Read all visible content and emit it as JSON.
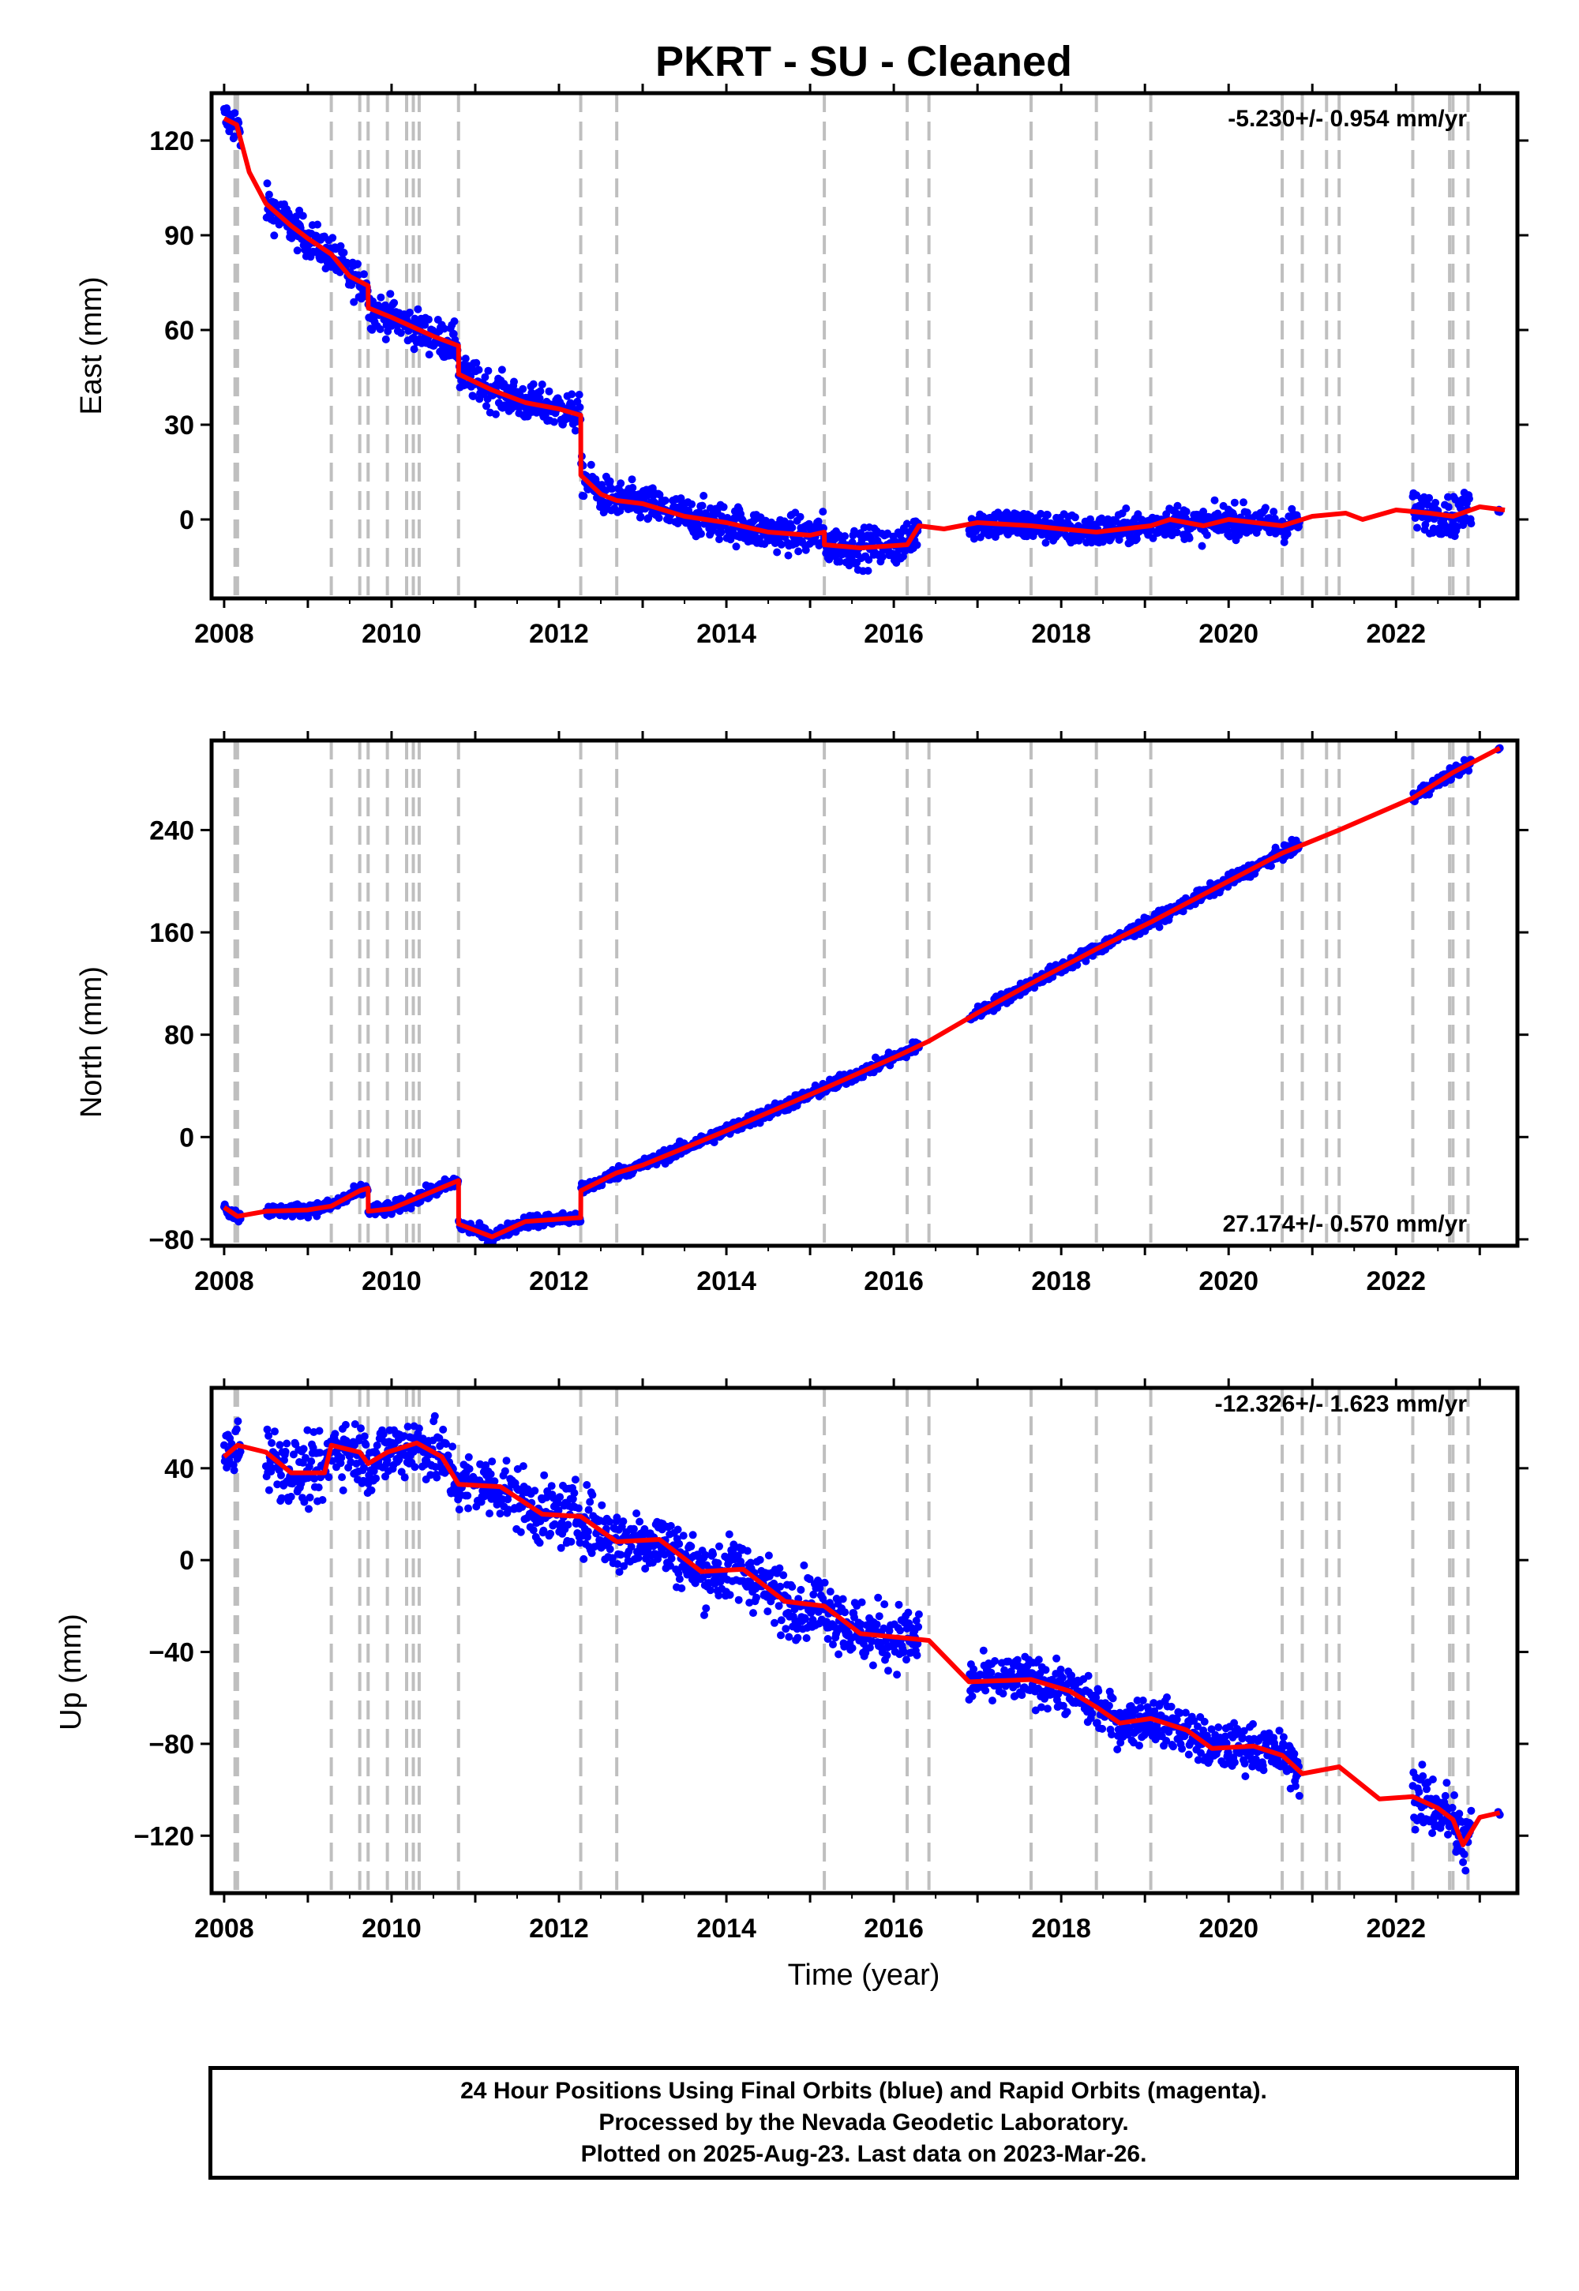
{
  "colors": {
    "final_orbits": "#0000ff",
    "model": "#ff0000",
    "offset_lines": "#bfbfbf",
    "axes": "#000000"
  },
  "footer": {
    "lines": [
      "24 Hour Positions Using Final Orbits (blue) and Rapid Orbits (magenta).",
      "Processed by the Nevada Geodetic Laboratory.",
      "Plotted on 2025-Aug-23. Last data on 2023-Mar-26."
    ]
  },
  "chart_data": {
    "type": "scatter",
    "title": "PKRT  - SU - Cleaned",
    "xlabel": "Time (year)",
    "xlim": [
      2007.85,
      2023.45
    ],
    "xticks": [
      2008,
      2010,
      2012,
      2014,
      2016,
      2018,
      2020,
      2022
    ],
    "offset_lines": [
      2008.13,
      2008.16,
      2009.28,
      2009.62,
      2009.72,
      2009.95,
      2010.18,
      2010.26,
      2010.33,
      2010.8,
      2012.26,
      2012.69,
      2015.17,
      2016.16,
      2016.42,
      2017.64,
      2018.42,
      2019.07,
      2020.64,
      2020.88,
      2021.17,
      2021.32,
      2022.2,
      2022.64,
      2022.68,
      2022.86
    ],
    "panels": [
      {
        "ylabel": "East (mm)",
        "ylim": [
          -25,
          135
        ],
        "yticks": [
          0,
          30,
          60,
          90,
          120
        ],
        "rate": "-5.230+/- 0.954 mm/yr",
        "rate_position": "top-right",
        "model": [
          {
            "x": 2008.0,
            "y": 127
          },
          {
            "x": 2008.15,
            "y": 125
          },
          {
            "x": 2008.3,
            "y": 110
          },
          {
            "x": 2008.5,
            "y": 100
          },
          {
            "x": 2008.8,
            "y": 93
          },
          {
            "x": 2009.0,
            "y": 89
          },
          {
            "x": 2009.28,
            "y": 84
          },
          {
            "x": 2009.5,
            "y": 77
          },
          {
            "x": 2009.72,
            "y": 74
          },
          {
            "x": 2009.721,
            "y": 67
          },
          {
            "x": 2010.0,
            "y": 64
          },
          {
            "x": 2010.5,
            "y": 58
          },
          {
            "x": 2010.8,
            "y": 55
          },
          {
            "x": 2010.801,
            "y": 46
          },
          {
            "x": 2011.2,
            "y": 41
          },
          {
            "x": 2011.6,
            "y": 37
          },
          {
            "x": 2012.0,
            "y": 35
          },
          {
            "x": 2012.26,
            "y": 33
          },
          {
            "x": 2012.261,
            "y": 14
          },
          {
            "x": 2012.5,
            "y": 8
          },
          {
            "x": 2012.69,
            "y": 6
          },
          {
            "x": 2013.0,
            "y": 5
          },
          {
            "x": 2013.5,
            "y": 1
          },
          {
            "x": 2014.0,
            "y": -1
          },
          {
            "x": 2014.5,
            "y": -4
          },
          {
            "x": 2015.0,
            "y": -5
          },
          {
            "x": 2015.17,
            "y": -4
          },
          {
            "x": 2015.171,
            "y": -8
          },
          {
            "x": 2015.6,
            "y": -9
          },
          {
            "x": 2016.16,
            "y": -8
          },
          {
            "x": 2016.3,
            "y": -2
          },
          {
            "x": 2016.6,
            "y": -3
          },
          {
            "x": 2017.0,
            "y": -1
          },
          {
            "x": 2017.64,
            "y": -2
          },
          {
            "x": 2018.0,
            "y": -3
          },
          {
            "x": 2018.42,
            "y": -4
          },
          {
            "x": 2019.07,
            "y": -2
          },
          {
            "x": 2019.3,
            "y": 0
          },
          {
            "x": 2019.7,
            "y": -2
          },
          {
            "x": 2020.0,
            "y": 0
          },
          {
            "x": 2020.64,
            "y": -2
          },
          {
            "x": 2021.0,
            "y": 1
          },
          {
            "x": 2021.4,
            "y": 2
          },
          {
            "x": 2021.6,
            "y": 0
          },
          {
            "x": 2022.0,
            "y": 3
          },
          {
            "x": 2022.4,
            "y": 2
          },
          {
            "x": 2022.68,
            "y": 1
          },
          {
            "x": 2023.0,
            "y": 4
          },
          {
            "x": 2023.3,
            "y": 3
          }
        ],
        "data_segments": [
          {
            "x0": 2008.0,
            "x1": 2008.2,
            "noise": 3
          },
          {
            "x0": 2008.5,
            "x1": 2016.3,
            "noise": 3
          },
          {
            "x0": 2016.9,
            "x1": 2020.85,
            "noise": 2.5
          },
          {
            "x0": 2022.2,
            "x1": 2022.9,
            "noise": 3
          },
          {
            "x0": 2023.22,
            "x1": 2023.24,
            "noise": 0.5
          }
        ]
      },
      {
        "ylabel": "North (mm)",
        "ylim": [
          -85,
          310
        ],
        "yticks": [
          -80,
          0,
          80,
          160,
          240
        ],
        "rate": "27.174+/- 0.570 mm/yr",
        "rate_position": "bottom-right",
        "model": [
          {
            "x": 2008.0,
            "y": -55
          },
          {
            "x": 2008.16,
            "y": -62
          },
          {
            "x": 2008.5,
            "y": -58
          },
          {
            "x": 2009.0,
            "y": -57
          },
          {
            "x": 2009.28,
            "y": -54
          },
          {
            "x": 2009.62,
            "y": -42
          },
          {
            "x": 2009.72,
            "y": -40
          },
          {
            "x": 2009.721,
            "y": -58
          },
          {
            "x": 2010.0,
            "y": -56
          },
          {
            "x": 2010.4,
            "y": -45
          },
          {
            "x": 2010.8,
            "y": -34
          },
          {
            "x": 2010.801,
            "y": -68
          },
          {
            "x": 2011.2,
            "y": -78
          },
          {
            "x": 2011.6,
            "y": -66
          },
          {
            "x": 2012.26,
            "y": -63
          },
          {
            "x": 2012.261,
            "y": -42
          },
          {
            "x": 2012.69,
            "y": -28
          },
          {
            "x": 2013.0,
            "y": -22
          },
          {
            "x": 2014.0,
            "y": 5
          },
          {
            "x": 2015.17,
            "y": 38
          },
          {
            "x": 2016.0,
            "y": 62
          },
          {
            "x": 2016.42,
            "y": 75
          },
          {
            "x": 2017.0,
            "y": 97
          },
          {
            "x": 2017.64,
            "y": 120
          },
          {
            "x": 2018.42,
            "y": 147
          },
          {
            "x": 2019.07,
            "y": 168
          },
          {
            "x": 2020.0,
            "y": 200
          },
          {
            "x": 2020.64,
            "y": 222
          },
          {
            "x": 2021.32,
            "y": 240
          },
          {
            "x": 2022.2,
            "y": 265
          },
          {
            "x": 2022.68,
            "y": 285
          },
          {
            "x": 2023.24,
            "y": 304
          }
        ],
        "data_segments": [
          {
            "x0": 2008.0,
            "x1": 2008.2,
            "noise": 2.5
          },
          {
            "x0": 2008.5,
            "x1": 2016.3,
            "noise": 2.5
          },
          {
            "x0": 2016.9,
            "x1": 2020.85,
            "noise": 2.5
          },
          {
            "x0": 2022.2,
            "x1": 2022.9,
            "noise": 2.5
          },
          {
            "x0": 2023.22,
            "x1": 2023.24,
            "noise": 0.5
          }
        ]
      },
      {
        "ylabel": "Up (mm)",
        "ylim": [
          -145,
          75
        ],
        "yticks": [
          -120,
          -80,
          -40,
          0,
          40
        ],
        "rate": "-12.326+/- 1.623 mm/yr",
        "rate_position": "top-right",
        "model": [
          {
            "x": 2008.0,
            "y": 45
          },
          {
            "x": 2008.16,
            "y": 50
          },
          {
            "x": 2008.5,
            "y": 47
          },
          {
            "x": 2008.8,
            "y": 38
          },
          {
            "x": 2009.2,
            "y": 38
          },
          {
            "x": 2009.28,
            "y": 50
          },
          {
            "x": 2009.62,
            "y": 47
          },
          {
            "x": 2009.72,
            "y": 42
          },
          {
            "x": 2009.95,
            "y": 47
          },
          {
            "x": 2010.3,
            "y": 51
          },
          {
            "x": 2010.6,
            "y": 45
          },
          {
            "x": 2010.8,
            "y": 33
          },
          {
            "x": 2011.3,
            "y": 32
          },
          {
            "x": 2011.8,
            "y": 20
          },
          {
            "x": 2012.26,
            "y": 19
          },
          {
            "x": 2012.69,
            "y": 8
          },
          {
            "x": 2013.2,
            "y": 9
          },
          {
            "x": 2013.7,
            "y": -5
          },
          {
            "x": 2014.2,
            "y": -4
          },
          {
            "x": 2014.7,
            "y": -18
          },
          {
            "x": 2015.17,
            "y": -20
          },
          {
            "x": 2015.6,
            "y": -32
          },
          {
            "x": 2016.16,
            "y": -34
          },
          {
            "x": 2016.42,
            "y": -35
          },
          {
            "x": 2016.9,
            "y": -53
          },
          {
            "x": 2017.64,
            "y": -52
          },
          {
            "x": 2018.1,
            "y": -57
          },
          {
            "x": 2018.42,
            "y": -64
          },
          {
            "x": 2018.7,
            "y": -71
          },
          {
            "x": 2019.07,
            "y": -69
          },
          {
            "x": 2019.5,
            "y": -74
          },
          {
            "x": 2019.8,
            "y": -82
          },
          {
            "x": 2020.3,
            "y": -81
          },
          {
            "x": 2020.64,
            "y": -85
          },
          {
            "x": 2020.88,
            "y": -93
          },
          {
            "x": 2021.32,
            "y": -90
          },
          {
            "x": 2021.8,
            "y": -104
          },
          {
            "x": 2022.2,
            "y": -103
          },
          {
            "x": 2022.5,
            "y": -108
          },
          {
            "x": 2022.68,
            "y": -113
          },
          {
            "x": 2022.8,
            "y": -124
          },
          {
            "x": 2023.0,
            "y": -112
          },
          {
            "x": 2023.24,
            "y": -110
          }
        ],
        "data_segments": [
          {
            "x0": 2008.0,
            "x1": 2008.2,
            "noise": 6
          },
          {
            "x0": 2008.5,
            "x1": 2016.3,
            "noise": 7
          },
          {
            "x0": 2016.9,
            "x1": 2020.85,
            "noise": 5
          },
          {
            "x0": 2022.2,
            "x1": 2022.9,
            "noise": 7
          },
          {
            "x0": 2023.22,
            "x1": 2023.24,
            "noise": 1
          }
        ]
      }
    ]
  }
}
